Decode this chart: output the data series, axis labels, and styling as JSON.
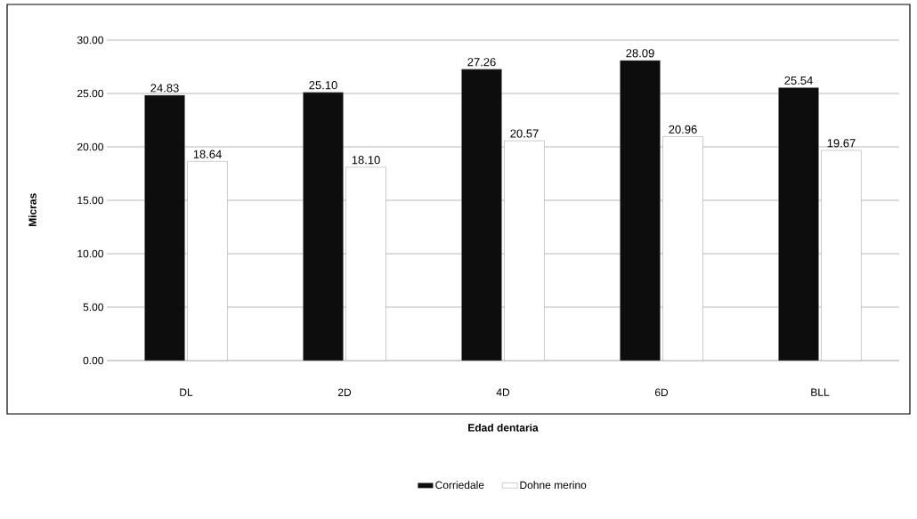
{
  "chart_data": {
    "type": "bar",
    "xlabel": "Edad dentaria",
    "ylabel": "Micras",
    "categories": [
      "DL",
      "2D",
      "4D",
      "6D",
      "BLL"
    ],
    "series": [
      {
        "name": "Corriedale",
        "color": "#0d0d0d",
        "values": [
          24.83,
          25.1,
          27.26,
          28.09,
          25.54
        ],
        "value_labels": [
          "24.83",
          "25.10",
          "27.26",
          "28.09",
          "25.54"
        ]
      },
      {
        "name": "Dohne merino",
        "color": "#ffffff",
        "values": [
          18.64,
          18.1,
          20.57,
          20.96,
          19.67
        ],
        "value_labels": [
          "18.64",
          "18.10",
          "20.57",
          "20.96",
          "19.67"
        ]
      }
    ],
    "ylim": [
      0,
      30
    ],
    "yticks": [
      {
        "value": 0,
        "label": "0.00"
      },
      {
        "value": 5,
        "label": "5.00"
      },
      {
        "value": 10,
        "label": "10.00"
      },
      {
        "value": 15,
        "label": "15.00"
      },
      {
        "value": 20,
        "label": "20.00"
      },
      {
        "value": 25,
        "label": "25.00"
      },
      {
        "value": 30,
        "label": "30.00"
      }
    ],
    "grid": "y",
    "legend": "bottom"
  }
}
